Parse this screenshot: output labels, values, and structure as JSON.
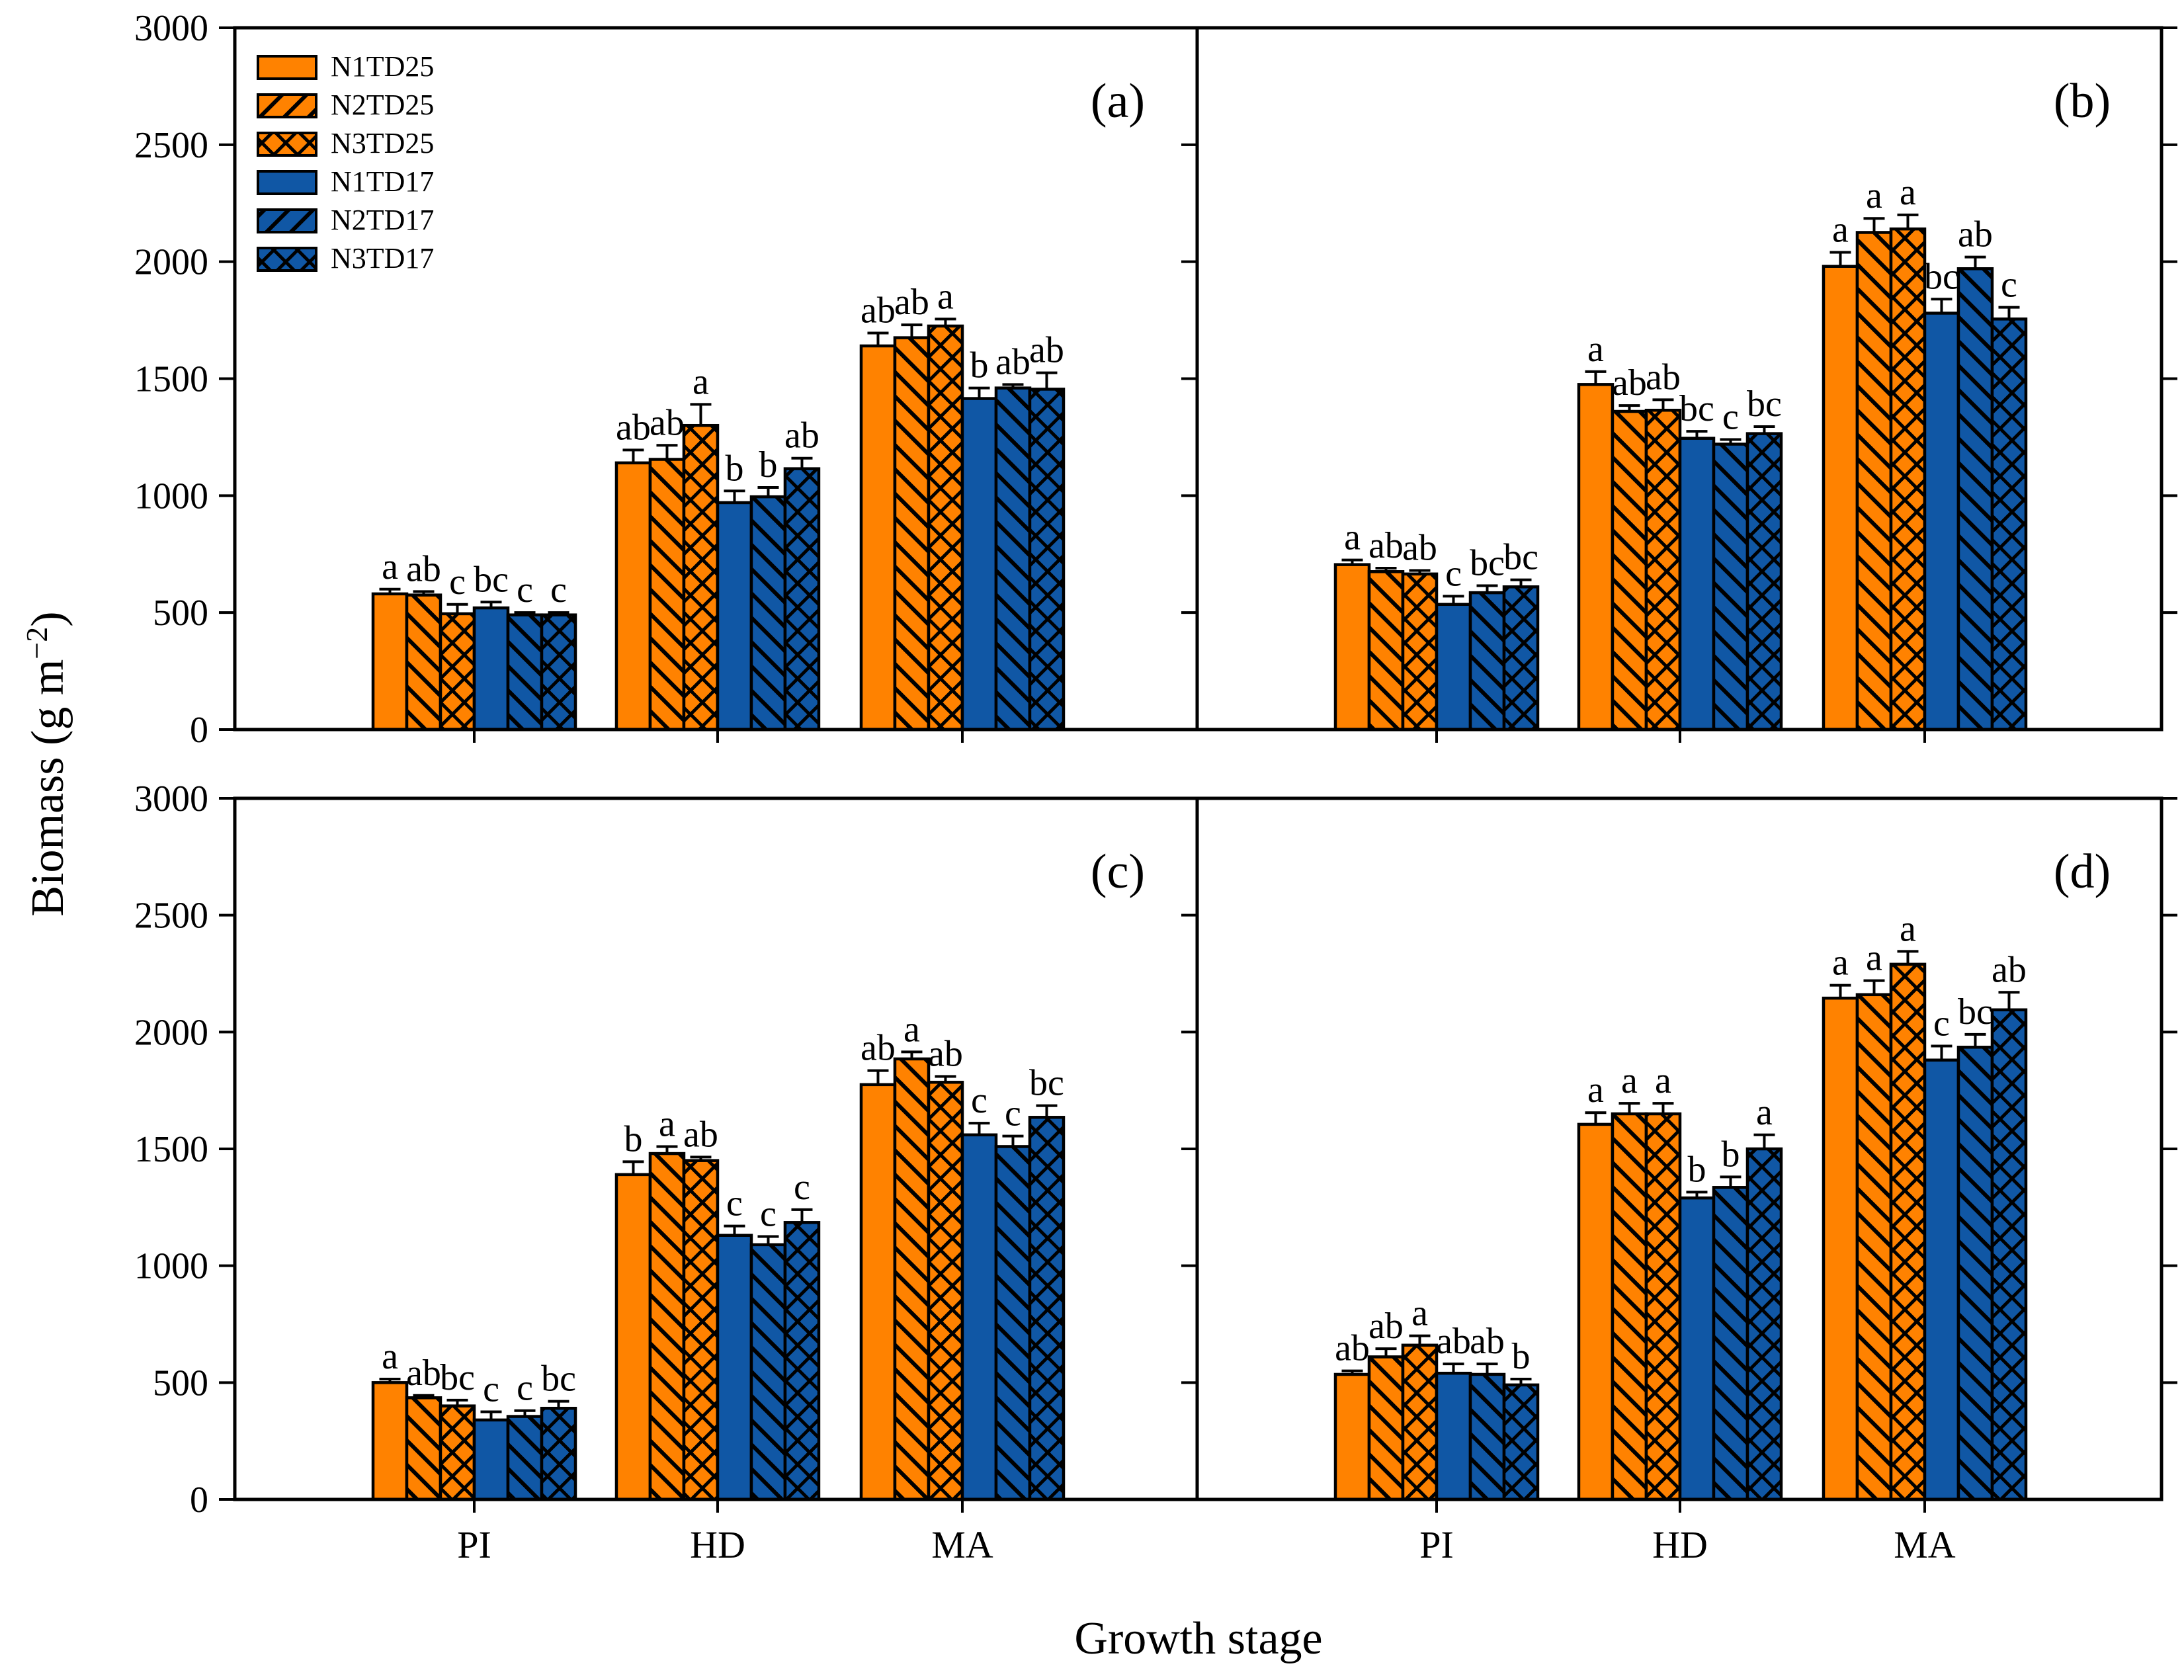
{
  "figure": {
    "xlabel": "Growth stage",
    "ylabel_main": "Biomass (g m",
    "ylabel_sup": "−2",
    "ylabel_close": ")"
  },
  "chart_data": {
    "type": "bar",
    "grouped": true,
    "categories": [
      "PI",
      "HD",
      "MA"
    ],
    "ylim": [
      0,
      3000
    ],
    "ytick_step": 500,
    "yticks": [
      0,
      500,
      1000,
      1500,
      2000,
      2500,
      3000
    ],
    "grid": false,
    "legend_position": "top-left-panel-a",
    "colors": {
      "orange": "#FF8200",
      "blue": "#1057A5",
      "outline": "#000000"
    },
    "series": [
      {
        "name": "N1TD25",
        "color": "#FF8200",
        "hatch": "none"
      },
      {
        "name": "N2TD25",
        "color": "#FF8200",
        "hatch": "diag"
      },
      {
        "name": "N3TD25",
        "color": "#FF8200",
        "hatch": "cross"
      },
      {
        "name": "N1TD17",
        "color": "#1057A5",
        "hatch": "none"
      },
      {
        "name": "N2TD17",
        "color": "#1057A5",
        "hatch": "diag"
      },
      {
        "name": "N3TD17",
        "color": "#1057A5",
        "hatch": "cross"
      }
    ],
    "panels": [
      {
        "label": "(a)",
        "row": 0,
        "col": 0,
        "values": [
          [
            580,
            575,
            495,
            520,
            490,
            490
          ],
          [
            1140,
            1155,
            1300,
            970,
            995,
            1115
          ],
          [
            1640,
            1675,
            1725,
            1415,
            1460,
            1455
          ]
        ],
        "errors": [
          [
            20,
            15,
            40,
            25,
            10,
            10
          ],
          [
            55,
            60,
            90,
            50,
            40,
            45
          ],
          [
            55,
            55,
            30,
            45,
            15,
            70
          ]
        ],
        "letters": [
          [
            "a",
            "ab",
            "c",
            "bc",
            "c",
            "c"
          ],
          [
            "ab",
            "ab",
            "a",
            "b",
            "b",
            "ab"
          ],
          [
            "ab",
            "ab",
            "a",
            "b",
            "ab",
            "ab"
          ]
        ]
      },
      {
        "label": "(b)",
        "row": 0,
        "col": 1,
        "values": [
          [
            705,
            675,
            665,
            535,
            585,
            610
          ],
          [
            1475,
            1360,
            1365,
            1245,
            1220,
            1265
          ],
          [
            1980,
            2125,
            2140,
            1780,
            1970,
            1755
          ]
        ],
        "errors": [
          [
            20,
            15,
            15,
            35,
            30,
            30
          ],
          [
            55,
            25,
            45,
            30,
            20,
            30
          ],
          [
            60,
            60,
            60,
            60,
            50,
            50
          ]
        ],
        "letters": [
          [
            "a",
            "ab",
            "ab",
            "c",
            "bc",
            "bc"
          ],
          [
            "a",
            "ab",
            "ab",
            "bc",
            "c",
            "bc"
          ],
          [
            "a",
            "a",
            "a",
            "bc",
            "ab",
            "c"
          ]
        ]
      },
      {
        "label": "(c)",
        "row": 1,
        "col": 0,
        "values": [
          [
            500,
            435,
            400,
            340,
            355,
            390
          ],
          [
            1390,
            1480,
            1450,
            1130,
            1090,
            1185
          ],
          [
            1775,
            1885,
            1785,
            1560,
            1510,
            1635
          ]
        ],
        "errors": [
          [
            15,
            10,
            25,
            35,
            25,
            30
          ],
          [
            55,
            30,
            15,
            40,
            35,
            55
          ],
          [
            60,
            30,
            25,
            50,
            45,
            50
          ]
        ],
        "letters": [
          [
            "a",
            "ab",
            "bc",
            "c",
            "c",
            "bc"
          ],
          [
            "b",
            "a",
            "ab",
            "c",
            "c",
            "c"
          ],
          [
            "ab",
            "a",
            "ab",
            "c",
            "c",
            "bc"
          ]
        ]
      },
      {
        "label": "(d)",
        "row": 1,
        "col": 1,
        "values": [
          [
            535,
            610,
            660,
            540,
            535,
            490
          ],
          [
            1605,
            1650,
            1650,
            1290,
            1335,
            1500
          ],
          [
            2145,
            2160,
            2290,
            1880,
            1935,
            2095
          ]
        ],
        "errors": [
          [
            15,
            35,
            40,
            40,
            45,
            25
          ],
          [
            50,
            45,
            45,
            25,
            45,
            60
          ],
          [
            55,
            60,
            55,
            60,
            55,
            75
          ]
        ],
        "letters": [
          [
            "ab",
            "ab",
            "a",
            "ab",
            "ab",
            "b"
          ],
          [
            "a",
            "a",
            "a",
            "b",
            "b",
            "a"
          ],
          [
            "a",
            "a",
            "a",
            "c",
            "bc",
            "ab"
          ]
        ]
      }
    ]
  }
}
